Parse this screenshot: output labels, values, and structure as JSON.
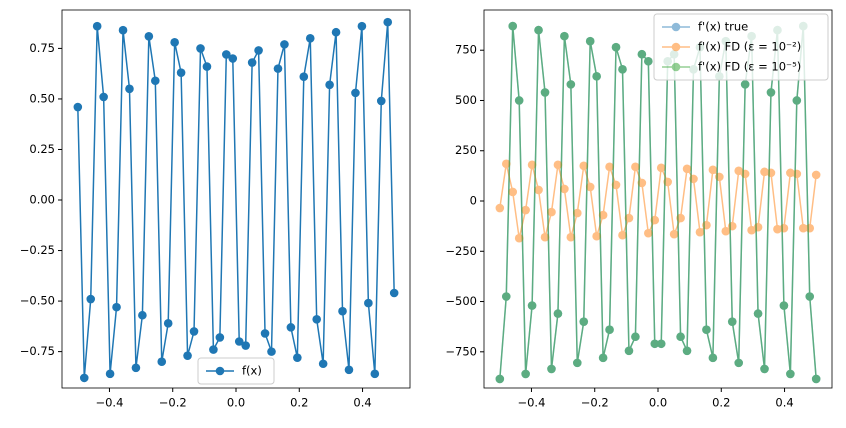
{
  "chart_data": [
    {
      "type": "line",
      "legend_loc": "lower center",
      "x": [
        -0.5,
        -0.4796,
        -0.4592,
        -0.4388,
        -0.4184,
        -0.398,
        -0.3776,
        -0.3571,
        -0.3367,
        -0.3163,
        -0.2959,
        -0.2755,
        -0.2551,
        -0.2347,
        -0.2143,
        -0.1939,
        -0.1735,
        -0.1531,
        -0.1327,
        -0.1122,
        -0.0918,
        -0.0714,
        -0.051,
        -0.0306,
        -0.0102,
        0.0102,
        0.0306,
        0.051,
        0.0714,
        0.0918,
        0.1122,
        0.1327,
        0.1531,
        0.1735,
        0.1939,
        0.2143,
        0.2347,
        0.2551,
        0.2755,
        0.2959,
        0.3163,
        0.3367,
        0.3571,
        0.3776,
        0.398,
        0.4184,
        0.4388,
        0.4592,
        0.4796,
        0.5
      ],
      "series": [
        {
          "name": "f(x)",
          "color": "#1f77b4",
          "alpha": 1,
          "values": [
            0.46,
            -0.88,
            -0.49,
            0.86,
            0.51,
            -0.86,
            -0.53,
            0.84,
            0.55,
            -0.83,
            -0.57,
            0.81,
            0.59,
            -0.8,
            -0.61,
            0.78,
            0.63,
            -0.77,
            -0.65,
            0.75,
            0.66,
            -0.74,
            -0.68,
            0.72,
            0.7,
            -0.7,
            -0.72,
            0.68,
            0.74,
            -0.66,
            -0.75,
            0.65,
            0.77,
            -0.63,
            -0.78,
            0.61,
            0.8,
            -0.59,
            -0.81,
            0.57,
            0.83,
            -0.55,
            -0.84,
            0.53,
            0.86,
            -0.51,
            -0.86,
            0.49,
            0.88,
            -0.46
          ]
        }
      ],
      "xlim": [
        -0.55,
        0.55
      ],
      "xticks": [
        {
          "value": -0.4,
          "label": "−0.4"
        },
        {
          "value": -0.2,
          "label": "−0.2"
        },
        {
          "value": 0,
          "label": "0.0"
        },
        {
          "value": 0.2,
          "label": "0.2"
        },
        {
          "value": 0.4,
          "label": "0.4"
        }
      ],
      "ylim": [
        -0.93,
        0.94
      ],
      "yticks": [
        {
          "value": -0.75,
          "label": "−0.75"
        },
        {
          "value": -0.5,
          "label": "−0.50"
        },
        {
          "value": -0.25,
          "label": "−0.25"
        },
        {
          "value": 0,
          "label": "0.00"
        },
        {
          "value": 0.25,
          "label": "0.25"
        },
        {
          "value": 0.5,
          "label": "0.50"
        },
        {
          "value": 0.75,
          "label": "0.75"
        }
      ]
    },
    {
      "type": "line",
      "legend_loc": "upper right",
      "x": [
        -0.5,
        -0.4796,
        -0.4592,
        -0.4388,
        -0.4184,
        -0.398,
        -0.3776,
        -0.3571,
        -0.3367,
        -0.3163,
        -0.2959,
        -0.2755,
        -0.2551,
        -0.2347,
        -0.2143,
        -0.1939,
        -0.1735,
        -0.1531,
        -0.1327,
        -0.1122,
        -0.0918,
        -0.0714,
        -0.051,
        -0.0306,
        -0.0102,
        0.0102,
        0.0306,
        0.051,
        0.0714,
        0.0918,
        0.1122,
        0.1327,
        0.1531,
        0.1735,
        0.1939,
        0.2143,
        0.2347,
        0.2551,
        0.2755,
        0.2959,
        0.3163,
        0.3367,
        0.3571,
        0.3776,
        0.398,
        0.4184,
        0.4388,
        0.4592,
        0.4796,
        0.5
      ],
      "series": [
        {
          "name": "f'(x) true",
          "color": "#1f77b4",
          "alpha": 0.5,
          "values": [
            -885,
            -475,
            870,
            500,
            -860,
            -520,
            850,
            540,
            -835,
            -560,
            820,
            580,
            -805,
            -600,
            795,
            620,
            -780,
            -640,
            765,
            655,
            -745,
            -675,
            730,
            695,
            -710,
            -710,
            695,
            730,
            -675,
            -745,
            655,
            765,
            -640,
            -780,
            620,
            795,
            -600,
            -805,
            580,
            820,
            -560,
            -835,
            540,
            850,
            -520,
            -860,
            500,
            870,
            -475,
            -885
          ]
        },
        {
          "name": "f'(x) FD (ε = 10⁻²)",
          "color": "#ff7f0e",
          "alpha": 0.5,
          "values": [
            -35,
            185,
            45,
            -185,
            -45,
            180,
            55,
            -180,
            -55,
            180,
            60,
            -180,
            -60,
            175,
            70,
            -175,
            -70,
            170,
            80,
            -170,
            -85,
            170,
            90,
            -160,
            -95,
            165,
            95,
            -165,
            -85,
            160,
            110,
            -155,
            -120,
            155,
            120,
            -150,
            -125,
            150,
            135,
            -145,
            -130,
            145,
            140,
            -140,
            -135,
            140,
            135,
            -135,
            -135,
            130
          ]
        },
        {
          "name": "f'(x) FD (ε = 10⁻⁵)",
          "color": "#2ca02c",
          "alpha": 0.5,
          "values": [
            -885,
            -475,
            870,
            500,
            -860,
            -520,
            850,
            540,
            -835,
            -560,
            820,
            580,
            -805,
            -600,
            795,
            620,
            -780,
            -640,
            765,
            655,
            -745,
            -675,
            730,
            695,
            -710,
            -710,
            695,
            730,
            -675,
            -745,
            655,
            765,
            -640,
            -780,
            620,
            795,
            -600,
            -805,
            580,
            820,
            -560,
            -835,
            540,
            850,
            -520,
            -860,
            500,
            870,
            -475,
            -885
          ]
        }
      ],
      "xlim": [
        -0.55,
        0.55
      ],
      "xticks": [
        {
          "value": -0.4,
          "label": "−0.4"
        },
        {
          "value": -0.2,
          "label": "−0.2"
        },
        {
          "value": 0,
          "label": "0.0"
        },
        {
          "value": 0.2,
          "label": "0.2"
        },
        {
          "value": 0.4,
          "label": "0.4"
        }
      ],
      "ylim": [
        -930,
        950
      ],
      "yticks": [
        {
          "value": -750,
          "label": "−750"
        },
        {
          "value": -500,
          "label": "−500"
        },
        {
          "value": -250,
          "label": "−250"
        },
        {
          "value": 0,
          "label": "0"
        },
        {
          "value": 250,
          "label": "250"
        },
        {
          "value": 500,
          "label": "500"
        },
        {
          "value": 750,
          "label": "750"
        }
      ]
    }
  ]
}
